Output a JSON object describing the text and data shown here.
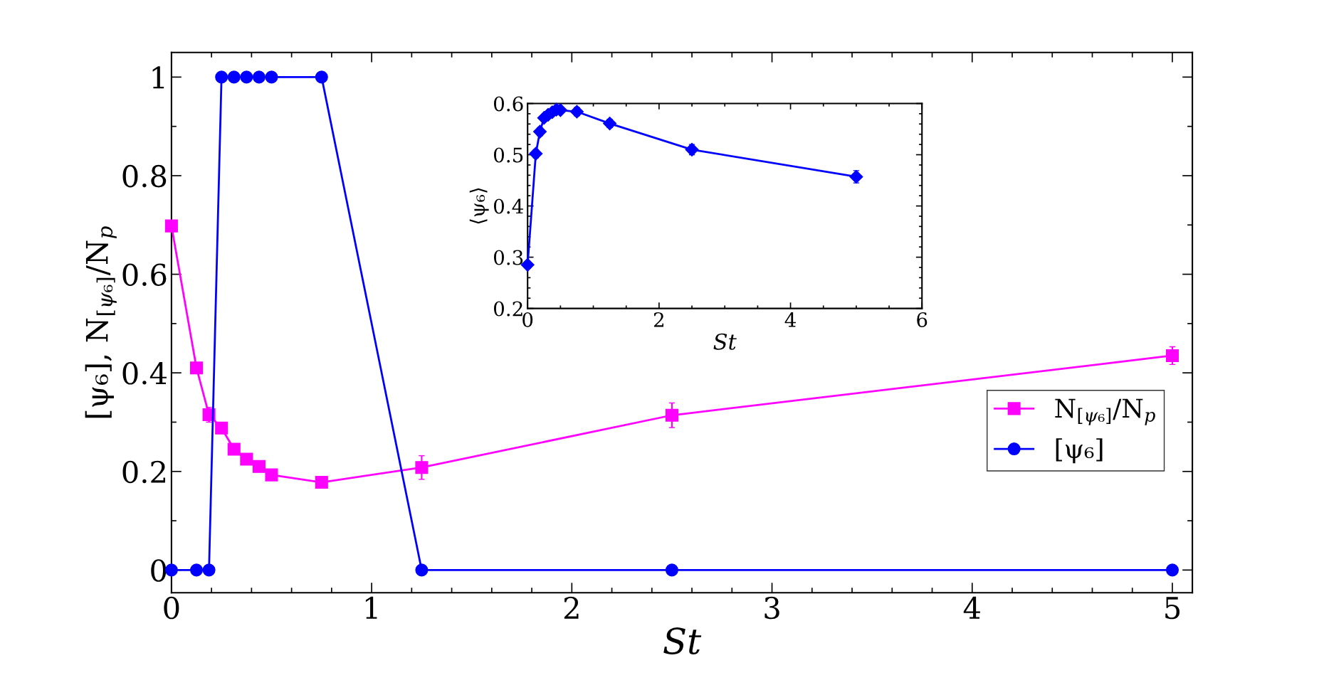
{
  "chart_data": [
    {
      "type": "line",
      "xlabel": "St",
      "ylabel": "[ψ₆], N$_{[ψ₆]}$/N$_{p}$",
      "xlim": [
        0,
        5.1
      ],
      "ylim": [
        -0.046,
        1.05
      ],
      "xticks": [
        0,
        1,
        2,
        3,
        4,
        5
      ],
      "yticks": [
        0,
        0.2,
        0.4,
        0.6,
        0.8,
        1
      ],
      "grid": false,
      "legend": "lower right",
      "series": [
        {
          "name": "N$_{[ψ₆]}$/N$_{p}$",
          "color": "#ff00ff",
          "marker": "square",
          "x": [
            0,
            0.125,
            0.1875,
            0.25,
            0.3125,
            0.375,
            0.4375,
            0.5,
            0.75,
            1.25,
            2.5,
            5
          ],
          "values": [
            0.698,
            0.41,
            0.315,
            0.288,
            0.245,
            0.225,
            0.21,
            0.193,
            0.178,
            0.208,
            0.314,
            0.435
          ],
          "errors": [
            0.005,
            0.005,
            0.015,
            0.008,
            0.008,
            0.006,
            0.006,
            0.005,
            0.005,
            0.024,
            0.025,
            0.018
          ]
        },
        {
          "name": "[ψ₆]",
          "color": "#0000ff",
          "marker": "circle",
          "x": [
            0,
            0.125,
            0.1875,
            0.25,
            0.3125,
            0.375,
            0.4375,
            0.5,
            0.75,
            1.25,
            2.5,
            5
          ],
          "values": [
            0,
            0,
            0,
            1,
            1,
            1,
            1,
            1,
            1,
            0,
            0,
            0
          ]
        }
      ]
    },
    {
      "type": "line",
      "xlabel": "St",
      "ylabel": "⟨ψ₆⟩",
      "xlim": [
        0,
        6
      ],
      "ylim": [
        0.2,
        0.6
      ],
      "xticks": [
        0,
        2,
        4,
        6
      ],
      "yticks": [
        0.2,
        0.3,
        0.4,
        0.5,
        0.6
      ],
      "grid": false,
      "series": [
        {
          "color": "#0000ff",
          "marker": "diamond",
          "x": [
            0,
            0.125,
            0.1875,
            0.25,
            0.3125,
            0.375,
            0.4375,
            0.5,
            0.75,
            1.25,
            2.5,
            5
          ],
          "values": [
            0.285,
            0.502,
            0.545,
            0.572,
            0.578,
            0.583,
            0.588,
            0.587,
            0.584,
            0.561,
            0.51,
            0.457
          ],
          "errors": [
            0.006,
            0.008,
            0.008,
            null,
            null,
            null,
            null,
            null,
            0.008,
            0.008,
            0.01,
            0.012
          ]
        }
      ]
    }
  ]
}
